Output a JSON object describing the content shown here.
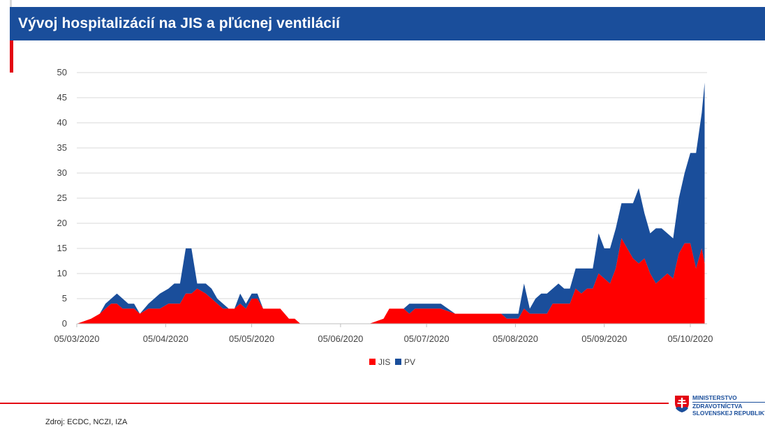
{
  "header": {
    "title": "Vývoj hospitalizácií na JIS a pľúcnej ventilácií"
  },
  "footer": {
    "source": "Zdroj: ECDC, NCZI, IZA"
  },
  "logo": {
    "line1": "MINISTERSTVO",
    "line2": "ZDRAVOTNÍCTVA",
    "line3": "SLOVENSKEJ REPUBLIKY"
  },
  "colors": {
    "header_bg": "#1a4e9b",
    "jis": "#ff0000",
    "pv": "#1a4e9b",
    "accent": "#e30613"
  },
  "chart_data": {
    "type": "area",
    "stacked": true,
    "title": "",
    "xlabel": "",
    "ylabel": "",
    "ylim": [
      0,
      50
    ],
    "yticks": [
      0,
      5,
      10,
      15,
      20,
      25,
      30,
      35,
      40,
      45,
      50
    ],
    "xtick_labels": [
      "05/03/2020",
      "05/04/2020",
      "05/05/2020",
      "05/06/2020",
      "05/07/2020",
      "05/08/2020",
      "05/09/2020",
      "05/10/2020"
    ],
    "xtick_dates": [
      "2020-03-05",
      "2020-04-05",
      "2020-05-05",
      "2020-06-05",
      "2020-07-05",
      "2020-08-05",
      "2020-09-05",
      "2020-10-05"
    ],
    "grid": true,
    "legend": "bottom-center",
    "x": [
      "2020-03-05",
      "2020-03-10",
      "2020-03-13",
      "2020-03-15",
      "2020-03-17",
      "2020-03-19",
      "2020-03-21",
      "2020-03-23",
      "2020-03-25",
      "2020-03-27",
      "2020-03-30",
      "2020-04-01",
      "2020-04-03",
      "2020-04-06",
      "2020-04-08",
      "2020-04-10",
      "2020-04-12",
      "2020-04-14",
      "2020-04-16",
      "2020-04-19",
      "2020-04-21",
      "2020-04-23",
      "2020-04-25",
      "2020-04-27",
      "2020-04-29",
      "2020-05-01",
      "2020-05-03",
      "2020-05-05",
      "2020-05-07",
      "2020-05-09",
      "2020-05-11",
      "2020-05-13",
      "2020-05-15",
      "2020-05-18",
      "2020-05-20",
      "2020-05-22",
      "2020-05-24",
      "2020-05-27",
      "2020-06-01",
      "2020-06-15",
      "2020-06-20",
      "2020-06-22",
      "2020-06-24",
      "2020-06-27",
      "2020-06-29",
      "2020-07-01",
      "2020-07-03",
      "2020-07-07",
      "2020-07-10",
      "2020-07-15",
      "2020-07-20",
      "2020-07-26",
      "2020-07-31",
      "2020-08-02",
      "2020-08-04",
      "2020-08-06",
      "2020-08-08",
      "2020-08-10",
      "2020-08-12",
      "2020-08-14",
      "2020-08-16",
      "2020-08-18",
      "2020-08-20",
      "2020-08-22",
      "2020-08-24",
      "2020-08-26",
      "2020-08-28",
      "2020-08-30",
      "2020-09-01",
      "2020-09-03",
      "2020-09-05",
      "2020-09-07",
      "2020-09-09",
      "2020-09-11",
      "2020-09-13",
      "2020-09-15",
      "2020-09-17",
      "2020-09-19",
      "2020-09-21",
      "2020-09-23",
      "2020-09-25",
      "2020-09-27",
      "2020-09-29",
      "2020-10-01",
      "2020-10-03",
      "2020-10-05",
      "2020-10-07",
      "2020-10-09",
      "2020-10-10"
    ],
    "series": [
      {
        "name": "JIS",
        "color": "#ff0000",
        "values": [
          0,
          1,
          2,
          3,
          4,
          4,
          3,
          3,
          3,
          2,
          3,
          3,
          3,
          4,
          4,
          4,
          6,
          6,
          7,
          6,
          5,
          4,
          3,
          3,
          3,
          4,
          3,
          5,
          5,
          3,
          3,
          3,
          3,
          1,
          1,
          0,
          0,
          0,
          0,
          0,
          1,
          3,
          3,
          3,
          2,
          3,
          3,
          3,
          3,
          2,
          2,
          2,
          2,
          1,
          1,
          1,
          3,
          2,
          2,
          2,
          2,
          4,
          4,
          4,
          4,
          7,
          6,
          7,
          7,
          10,
          9,
          8,
          11,
          17,
          15,
          13,
          12,
          13,
          10,
          8,
          9,
          10,
          9,
          14,
          16,
          16,
          11,
          15,
          12
        ]
      },
      {
        "name": "PV",
        "color": "#1a4e9b",
        "values": [
          0,
          0,
          0,
          1,
          1,
          2,
          2,
          1,
          1,
          0,
          1,
          2,
          3,
          3,
          4,
          4,
          9,
          9,
          1,
          2,
          2,
          1,
          1,
          0,
          0,
          2,
          1,
          1,
          1,
          0,
          0,
          0,
          0,
          0,
          0,
          0,
          0,
          0,
          0,
          0,
          0,
          0,
          0,
          0,
          2,
          1,
          1,
          1,
          1,
          0,
          0,
          0,
          0,
          1,
          1,
          1,
          5,
          1,
          3,
          4,
          4,
          3,
          4,
          3,
          3,
          4,
          5,
          4,
          4,
          8,
          6,
          7,
          8,
          7,
          9,
          11,
          15,
          9,
          8,
          11,
          10,
          8,
          8,
          11,
          14,
          18,
          23,
          27,
          36
        ]
      }
    ]
  }
}
